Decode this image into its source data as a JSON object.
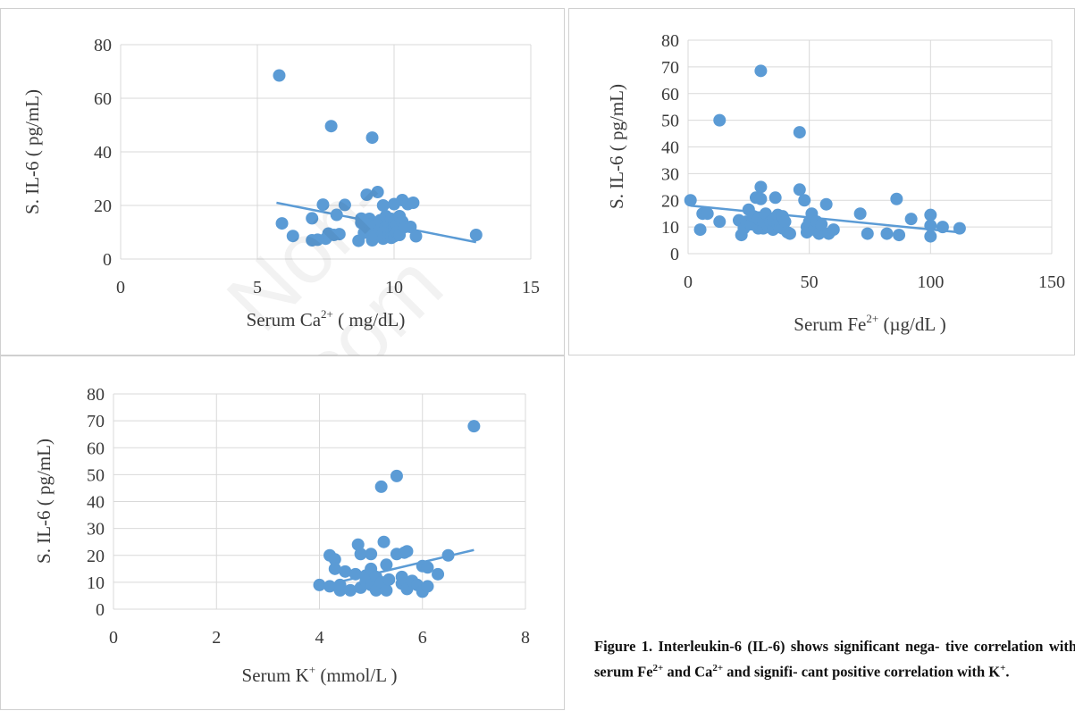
{
  "caption": {
    "prefix": "Figure 1. Interleukin-6 (IL-6) shows significant nega-",
    "line2a": "tive correlation with serum Fe",
    "fe_sup": "2+",
    "line2b": " and Ca",
    "ca_sup": "2+",
    "line2c": " and signifi-",
    "line3a": "cant positive correlation with K",
    "k_sup": "+",
    "line3b": "."
  },
  "watermark": "Non-com",
  "colors": {
    "marker": "#5b9bd5",
    "trend": "#5b9bd5",
    "grid": "#d9d9d9"
  },
  "chart_data": [
    {
      "id": "ca",
      "type": "scatter",
      "xlabel_main": "Serum Ca",
      "xlabel_sup": "2+",
      "xlabel_tail": " ( mg/dL)",
      "ylabel": "S. IL-6 ( pg/mL)",
      "xlim": [
        0,
        15
      ],
      "ylim": [
        0,
        80
      ],
      "xticks": [
        0,
        5,
        10,
        15
      ],
      "yticks": [
        0,
        20,
        40,
        60,
        80
      ],
      "grid": true,
      "trendline": [
        [
          5.7,
          21
        ],
        [
          13,
          6.3
        ]
      ],
      "points": [
        [
          5.8,
          68.5
        ],
        [
          5.9,
          13.3
        ],
        [
          6.3,
          8.6
        ],
        [
          7.0,
          15.2
        ],
        [
          7.0,
          7.0
        ],
        [
          7.2,
          7.2
        ],
        [
          7.4,
          20.3
        ],
        [
          7.5,
          7.6
        ],
        [
          7.6,
          9.5
        ],
        [
          7.7,
          49.6
        ],
        [
          7.8,
          9.0
        ],
        [
          7.9,
          16.5
        ],
        [
          8.0,
          9.3
        ],
        [
          8.2,
          20.2
        ],
        [
          8.7,
          6.8
        ],
        [
          8.8,
          15.1
        ],
        [
          8.8,
          13.5
        ],
        [
          8.9,
          9.8
        ],
        [
          9.0,
          24.0
        ],
        [
          9.1,
          15.0
        ],
        [
          9.1,
          13.0
        ],
        [
          9.2,
          45.3
        ],
        [
          9.2,
          10.1
        ],
        [
          9.2,
          7.0
        ],
        [
          9.3,
          12.5
        ],
        [
          9.3,
          8.5
        ],
        [
          9.4,
          25.0
        ],
        [
          9.5,
          14.5
        ],
        [
          9.5,
          11.0
        ],
        [
          9.6,
          20.0
        ],
        [
          9.6,
          9.4
        ],
        [
          9.6,
          7.6
        ],
        [
          9.7,
          16.0
        ],
        [
          9.7,
          12.1
        ],
        [
          9.8,
          13.0
        ],
        [
          9.8,
          9.0
        ],
        [
          9.9,
          15.0
        ],
        [
          9.9,
          10.5
        ],
        [
          9.9,
          7.9
        ],
        [
          10.0,
          20.5
        ],
        [
          10.0,
          14.0
        ],
        [
          10.0,
          11.5
        ],
        [
          10.0,
          8.5
        ],
        [
          10.1,
          12.7
        ],
        [
          10.1,
          10.0
        ],
        [
          10.2,
          16.0
        ],
        [
          10.2,
          9.0
        ],
        [
          10.3,
          22.0
        ],
        [
          10.3,
          14.0
        ],
        [
          10.4,
          12.0
        ],
        [
          10.5,
          20.5
        ],
        [
          10.6,
          12.0
        ],
        [
          10.7,
          21.0
        ],
        [
          10.8,
          8.5
        ],
        [
          13.0,
          9.0
        ]
      ]
    },
    {
      "id": "fe",
      "type": "scatter",
      "xlabel_main": "Serum Fe",
      "xlabel_sup": "2+",
      "xlabel_tail": " (µg/dL )",
      "ylabel": "S. IL-6 ( pg/mL)",
      "xlim": [
        0,
        150
      ],
      "ylim": [
        0,
        80
      ],
      "xticks": [
        0,
        50,
        100,
        150
      ],
      "yticks": [
        0,
        10,
        20,
        30,
        40,
        50,
        60,
        70,
        80
      ],
      "grid": true,
      "trendline": [
        [
          1,
          18
        ],
        [
          112,
          8
        ]
      ],
      "points": [
        [
          1,
          20
        ],
        [
          5,
          9
        ],
        [
          6,
          15
        ],
        [
          8,
          15
        ],
        [
          13,
          50
        ],
        [
          13,
          12
        ],
        [
          21,
          12.5
        ],
        [
          22,
          7
        ],
        [
          23,
          9.5
        ],
        [
          24,
          12
        ],
        [
          25,
          16.5
        ],
        [
          26,
          11
        ],
        [
          27,
          14
        ],
        [
          28,
          21
        ],
        [
          29,
          9.5
        ],
        [
          29,
          13
        ],
        [
          30,
          68.5
        ],
        [
          30,
          25
        ],
        [
          30,
          20.5
        ],
        [
          31,
          9.5
        ],
        [
          31,
          12
        ],
        [
          32,
          15
        ],
        [
          33,
          10.5
        ],
        [
          34,
          12
        ],
        [
          35,
          9
        ],
        [
          35,
          12.5
        ],
        [
          36,
          21
        ],
        [
          37,
          14.5
        ],
        [
          37,
          11
        ],
        [
          38,
          10
        ],
        [
          39,
          14
        ],
        [
          39,
          9.5
        ],
        [
          40,
          12
        ],
        [
          41,
          8
        ],
        [
          42,
          7.5
        ],
        [
          46,
          45.5
        ],
        [
          46,
          24
        ],
        [
          48,
          20
        ],
        [
          49,
          10
        ],
        [
          49,
          8
        ],
        [
          50,
          12
        ],
        [
          51,
          15
        ],
        [
          52,
          9
        ],
        [
          53,
          12
        ],
        [
          54,
          7.5
        ],
        [
          55,
          11
        ],
        [
          57,
          18.5
        ],
        [
          58,
          7.5
        ],
        [
          60,
          9
        ],
        [
          71,
          15
        ],
        [
          74,
          7.5
        ],
        [
          82,
          7.5
        ],
        [
          86,
          20.5
        ],
        [
          87,
          7
        ],
        [
          92,
          13
        ],
        [
          100,
          14.5
        ],
        [
          100,
          10.5
        ],
        [
          100,
          6.5
        ],
        [
          105,
          10
        ],
        [
          112,
          9.5
        ]
      ]
    },
    {
      "id": "k",
      "type": "scatter",
      "xlabel_main": "Serum K",
      "xlabel_sup": "+",
      "xlabel_tail": " (mmol/L )",
      "ylabel": "S. IL-6 ( pg/mL)",
      "xlim": [
        0,
        8
      ],
      "ylim": [
        0,
        80
      ],
      "xticks": [
        0,
        2,
        4,
        6,
        8
      ],
      "yticks": [
        0,
        10,
        20,
        30,
        40,
        50,
        60,
        70,
        80
      ],
      "grid": true,
      "trendline": [
        [
          4,
          8.4
        ],
        [
          7,
          22
        ]
      ],
      "points": [
        [
          4.0,
          9
        ],
        [
          4.2,
          8.5
        ],
        [
          4.2,
          20
        ],
        [
          4.3,
          18.5
        ],
        [
          4.3,
          15
        ],
        [
          4.4,
          7
        ],
        [
          4.4,
          9
        ],
        [
          4.5,
          14
        ],
        [
          4.6,
          7
        ],
        [
          4.7,
          13
        ],
        [
          4.75,
          24
        ],
        [
          4.8,
          8
        ],
        [
          4.8,
          20.5
        ],
        [
          4.9,
          12.5
        ],
        [
          4.9,
          10.5
        ],
        [
          5.0,
          15
        ],
        [
          5.0,
          20.5
        ],
        [
          5.0,
          9
        ],
        [
          5.1,
          7
        ],
        [
          5.1,
          12
        ],
        [
          5.2,
          45.5
        ],
        [
          5.2,
          10
        ],
        [
          5.25,
          25
        ],
        [
          5.3,
          16.5
        ],
        [
          5.3,
          7
        ],
        [
          5.35,
          11
        ],
        [
          5.5,
          49.5
        ],
        [
          5.5,
          20.5
        ],
        [
          5.6,
          12
        ],
        [
          5.6,
          9.5
        ],
        [
          5.65,
          21
        ],
        [
          5.7,
          7.5
        ],
        [
          5.7,
          21.5
        ],
        [
          5.8,
          10.5
        ],
        [
          5.9,
          9
        ],
        [
          6.0,
          16
        ],
        [
          6.0,
          6.5
        ],
        [
          6.1,
          8.5
        ],
        [
          6.1,
          15.5
        ],
        [
          6.3,
          13
        ],
        [
          6.5,
          20
        ],
        [
          7.0,
          68
        ]
      ]
    }
  ]
}
